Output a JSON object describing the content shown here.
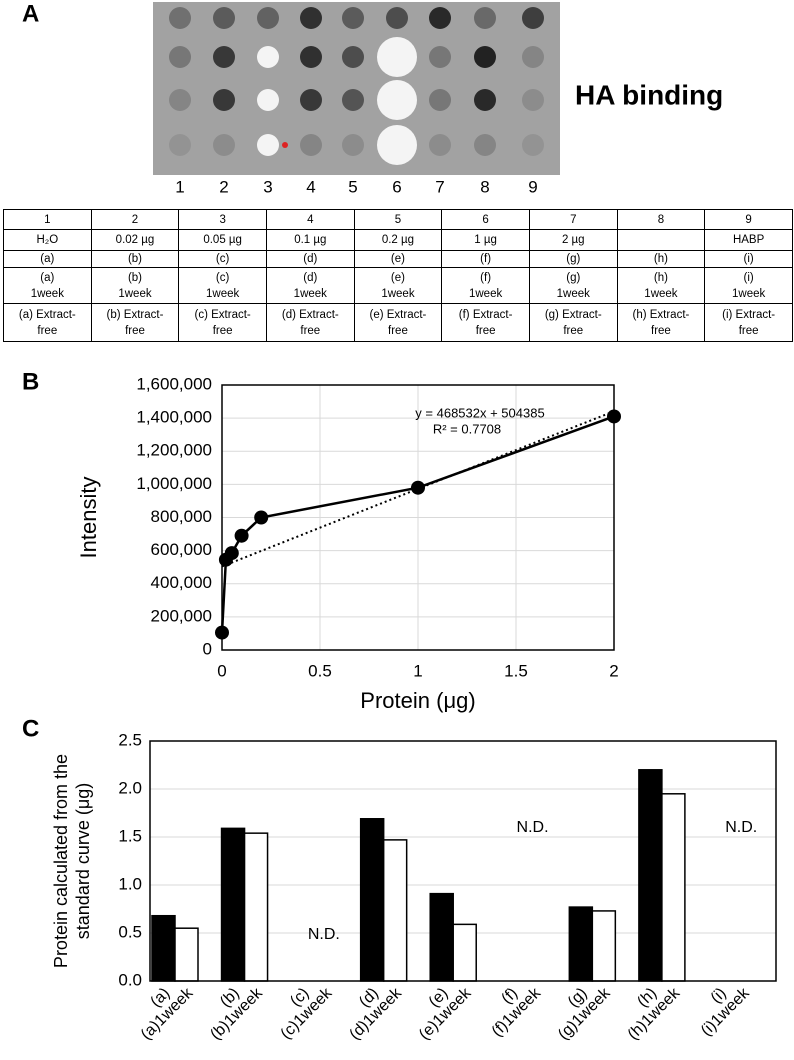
{
  "panel_a": {
    "label": "A",
    "title": "HA binding",
    "lanes": [
      "1",
      "2",
      "3",
      "4",
      "5",
      "6",
      "7",
      "8",
      "9"
    ],
    "table": {
      "rows": [
        [
          "1",
          "2",
          "3",
          "4",
          "5",
          "6",
          "7",
          "8",
          "9"
        ],
        [
          "H₂O",
          "0.02 µg",
          "0.05 µg",
          "0.1 µg",
          "0.2 µg",
          "1 µg",
          "2 µg",
          null,
          "HABP"
        ],
        [
          "(a)",
          "(b)",
          "(c)",
          "(d)",
          "(e)",
          "(f)",
          "(g)",
          "(h)",
          "(i)"
        ],
        [
          "(a)\n1week",
          "(b)\n1week",
          "(c)\n1week",
          "(d)\n1week",
          "(e)\n1week",
          "(f)\n1week",
          "(g)\n1week",
          "(h)\n1week",
          "(i)\n1week"
        ],
        [
          "(a) Extract-\nfree",
          "(b) Extract-\nfree",
          "(c) Extract-\nfree",
          "(d) Extract-\nfree",
          "(e) Extract-\nfree",
          "(f) Extract-\nfree",
          "(g) Extract-\nfree",
          "(h) Extract-\nfree",
          "(i) Extract-\nfree"
        ]
      ]
    }
  },
  "chart_data": [
    {
      "type": "line",
      "label": "B",
      "xlabel": "Protein (μg)",
      "ylabel": "Intensity",
      "x": [
        0,
        0.02,
        0.05,
        0.1,
        0.2,
        1,
        2
      ],
      "series": [
        {
          "color": "#000000",
          "values": [
            105000,
            545000,
            585000,
            690000,
            800000,
            980000,
            1410000
          ]
        }
      ],
      "xlim": [
        0,
        2
      ],
      "xticks": [
        0,
        0.5,
        1,
        1.5,
        2
      ],
      "ylim": [
        0,
        1600000
      ],
      "yticks": [
        0,
        {
          "value": 200000,
          "label": "200,000"
        },
        {
          "value": 400000,
          "label": "400,000"
        },
        {
          "value": 600000,
          "label": "600,000"
        },
        {
          "value": 800000,
          "label": "800,000"
        },
        {
          "value": 1000000,
          "label": "1,000,000"
        },
        {
          "value": 1200000,
          "label": "1,200,000"
        },
        {
          "value": 1400000,
          "label": "1,400,000"
        },
        {
          "value": 1600000,
          "label": "1,600,000"
        }
      ],
      "grid": true,
      "trendline": {
        "slope": 468532,
        "intercept": 504385,
        "label": "y = 468532x + 504385",
        "r2_label": "R² = 0.7708"
      }
    },
    {
      "type": "bar",
      "label": "C",
      "ylabel": [
        "Protein calculated from the",
        "standard curve (μg)"
      ],
      "series": [
        {
          "color": "#000000",
          "labels": [
            "(a)",
            "(b)",
            "(c)",
            "(d)",
            "(e)",
            "(f)",
            "(g)",
            "(h)",
            "(i)"
          ],
          "values": [
            0.68,
            1.59,
            null,
            1.69,
            0.91,
            null,
            0.77,
            2.2,
            null
          ]
        },
        {
          "color": "#ffffff",
          "labels": [
            "(a)1week",
            "(b)1week",
            "(c)1week",
            "(d)1week",
            "(e)1week",
            "(f)1week",
            "(g)1week",
            "(h)1week",
            "(i)1week"
          ],
          "values": [
            0.55,
            1.54,
            null,
            1.47,
            0.59,
            null,
            0.73,
            1.95,
            null
          ]
        }
      ],
      "nd_labels": [
        null,
        null,
        "N.D.",
        null,
        null,
        "N.D.",
        null,
        null,
        "N.D."
      ],
      "ylim": [
        0,
        2.5
      ],
      "yticks": [
        {
          "value": 0,
          "label": "0.0"
        },
        {
          "value": 0.5,
          "label": "0.5"
        },
        {
          "value": 1,
          "label": "1.0"
        },
        {
          "value": 1.5,
          "label": "1.5"
        },
        {
          "value": 2,
          "label": "2.0"
        },
        {
          "value": 2.5,
          "label": "2.5"
        }
      ],
      "grid": true
    }
  ]
}
